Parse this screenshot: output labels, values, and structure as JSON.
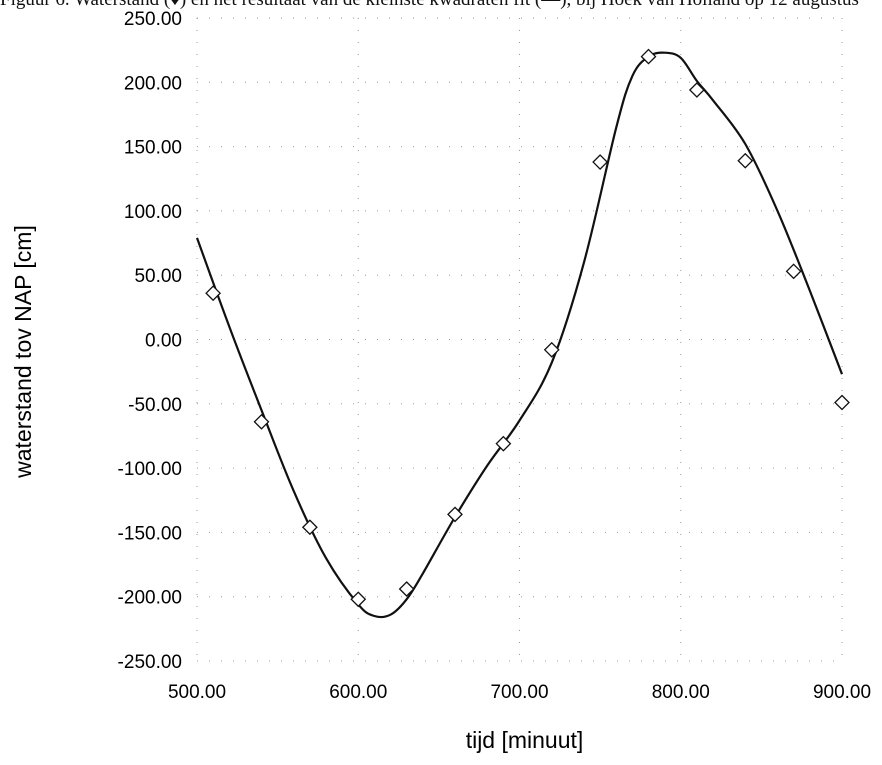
{
  "caption": "Figuur 6. Waterstand (♦) en het resultaat van de kleinste kwadraten fit (—), bij Hoek van Holland op 12 augustus",
  "chart_data": {
    "type": "scatter",
    "title": "",
    "xlabel": "tijd [minuut]",
    "ylabel": "waterstand tov NAP [cm]",
    "xlim": [
      500,
      900
    ],
    "ylim": [
      -250,
      250
    ],
    "x_ticks": [
      "500.00",
      "600.00",
      "700.00",
      "800.00",
      "900.00"
    ],
    "y_ticks": [
      "250.00",
      "200.00",
      "150.00",
      "100.00",
      "50.00",
      "0.00",
      "-50.00",
      "-100.00",
      "-150.00",
      "-200.00",
      "-250.00"
    ],
    "x_tick_values": [
      500,
      600,
      700,
      800,
      900
    ],
    "y_tick_values": [
      250,
      200,
      150,
      100,
      50,
      0,
      -50,
      -100,
      -150,
      -200,
      -250
    ],
    "grid": true,
    "legend": "none",
    "series": [
      {
        "kind": "markers",
        "marker": "diamond",
        "x": [
          510,
          540,
          570,
          600,
          630,
          660,
          690,
          720,
          750,
          780,
          810,
          840,
          870,
          900
        ],
        "y": [
          36,
          -64,
          -146,
          -202,
          -194,
          -136,
          -81,
          -8,
          138,
          220,
          194,
          139,
          53,
          -49
        ]
      },
      {
        "kind": "line",
        "x": [
          500,
          520,
          540,
          560,
          580,
          600,
          610,
          620,
          630,
          640,
          660,
          680,
          700,
          720,
          740,
          760,
          770,
          780,
          790,
          800,
          810,
          820,
          840,
          860,
          880,
          900
        ],
        "y": [
          79,
          10,
          -55,
          -118,
          -170,
          -206,
          -215,
          -214,
          -202,
          -182,
          -138,
          -98,
          -63,
          -18,
          60,
          165,
          205,
          220,
          223,
          219,
          201,
          186,
          152,
          100,
          38,
          -27
        ]
      }
    ]
  }
}
